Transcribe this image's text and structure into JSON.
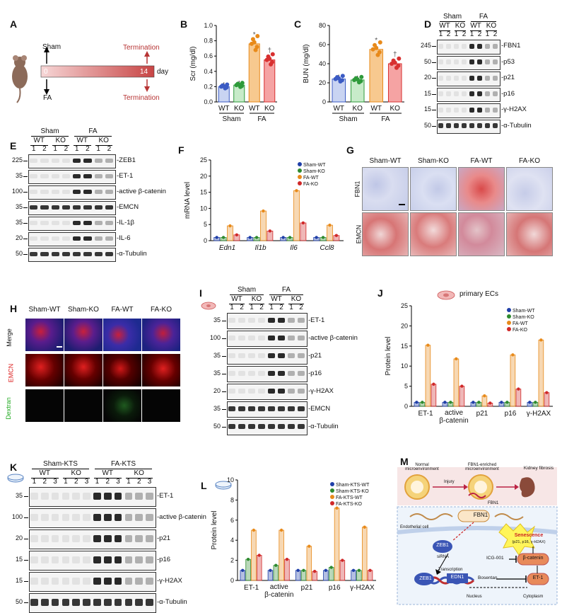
{
  "panels": {
    "A": {
      "letter": "A",
      "sham": "Sham",
      "fa": "FA",
      "day0": "0",
      "day14": "14",
      "day_unit": "day",
      "termination_top": "Termination",
      "termination_bottom": "Termination"
    },
    "B": {
      "letter": "B"
    },
    "C": {
      "letter": "C"
    },
    "D": {
      "letter": "D",
      "groups": [
        "Sham",
        "FA"
      ],
      "genotypes": [
        "WT",
        "KO",
        "WT",
        "KO"
      ],
      "lanes": [
        "1",
        "2",
        "1",
        "2",
        "1",
        "2",
        "1",
        "2"
      ],
      "bands": [
        {
          "mw": "245",
          "name": "FBN1"
        },
        {
          "mw": "50",
          "name": "p53"
        },
        {
          "mw": "20",
          "name": "p21"
        },
        {
          "mw": "15",
          "name": "p16"
        },
        {
          "mw": "15",
          "name": "γ-H2AX"
        },
        {
          "mw": "50",
          "name": "α-Tubulin"
        }
      ]
    },
    "E": {
      "letter": "E",
      "groups": [
        "Sham",
        "FA"
      ],
      "genotypes": [
        "WT",
        "KO",
        "WT",
        "KO"
      ],
      "lanes": [
        "1",
        "2",
        "1",
        "2",
        "1",
        "2",
        "1",
        "2"
      ],
      "bands": [
        {
          "mw": "225",
          "name": "ZEB1"
        },
        {
          "mw": "35",
          "name": "ET-1"
        },
        {
          "mw": "100",
          "name": "active β-catenin"
        },
        {
          "mw": "35",
          "name": "EMCN"
        },
        {
          "mw": "35",
          "name": "IL-1β"
        },
        {
          "mw": "20",
          "name": "IL-6"
        },
        {
          "mw": "50",
          "name": "α-Tubulin"
        }
      ]
    },
    "F": {
      "letter": "F"
    },
    "G": {
      "letter": "G",
      "columns": [
        "Sham-WT",
        "Sham-KO",
        "FA-WT",
        "FA-KO"
      ],
      "rows": [
        "FBN1",
        "EMCN"
      ]
    },
    "H": {
      "letter": "H",
      "columns": [
        "Sham-WT",
        "Sham-KO",
        "FA-WT",
        "FA-KO"
      ],
      "rows": [
        "Merge",
        "EMCN",
        "Dextran"
      ]
    },
    "I": {
      "letter": "I",
      "groups": [
        "Sham",
        "FA"
      ],
      "genotypes": [
        "WT",
        "KO",
        "WT",
        "KO"
      ],
      "lanes": [
        "1",
        "2",
        "1",
        "2",
        "1",
        "2",
        "1",
        "2"
      ],
      "bands": [
        {
          "mw": "35",
          "name": "ET-1"
        },
        {
          "mw": "100",
          "name": "active β-catenin"
        },
        {
          "mw": "35",
          "name": "p21"
        },
        {
          "mw": "35",
          "name": "p16"
        },
        {
          "mw": "20",
          "name": "γ-H2AX"
        },
        {
          "mw": "35",
          "name": "EMCN"
        },
        {
          "mw": "50",
          "name": "α-Tubulin"
        }
      ]
    },
    "J": {
      "letter": "J",
      "header": "primary ECs"
    },
    "K": {
      "letter": "K",
      "groups": [
        "Sham-KTS",
        "FA-KTS"
      ],
      "genotypes": [
        "WT",
        "KO",
        "WT",
        "KO"
      ],
      "lanes": [
        "1",
        "2",
        "3",
        "1",
        "2",
        "3",
        "1",
        "2",
        "3",
        "1",
        "2",
        "3"
      ],
      "bands": [
        {
          "mw": "35",
          "name": "ET-1"
        },
        {
          "mw": "100",
          "name": "active β-catenin"
        },
        {
          "mw": "20",
          "name": "p21"
        },
        {
          "mw": "15",
          "name": "p16"
        },
        {
          "mw": "15",
          "name": "γ-H2AX"
        },
        {
          "mw": "50",
          "name": "α-Tubulin"
        }
      ]
    },
    "L": {
      "letter": "L"
    },
    "M": {
      "letter": "M",
      "normal": "Normal microenvironment",
      "fbn1_env": "FBN1-enriched microenvironment",
      "fibrosis": "Kidney fibrosis",
      "injury": "Injury",
      "fbn1_small": "FBN1",
      "fbn1": "FBN1",
      "endothelial": "Endothelial cell",
      "zeb1": "ZEB1",
      "sirna": "siRNA",
      "transcription": "Transcription",
      "zeb1_dna": "ZEB1",
      "edn1": "EDN1",
      "nucleus": "Nucleus",
      "cytoplasm": "Cytoplasm",
      "icg": "ICG-001",
      "bosentan": "Bosentan",
      "bcat": "β-catenin",
      "et1": "ET-1",
      "senescence": "Senescence",
      "senescence_sub": "(p21, p16, γ-H2AX)"
    }
  },
  "chart_data": [
    {
      "panel": "B",
      "type": "bar",
      "ylabel": "Scr (mg/dl)",
      "ylim": [
        0.0,
        1.0
      ],
      "yticks": [
        "0.0",
        "0.2",
        "0.4",
        "0.6",
        "0.8",
        "1.0"
      ],
      "categories": [
        "WT",
        "KO",
        "WT",
        "KO"
      ],
      "groups": [
        "Sham",
        "FA"
      ],
      "values": [
        0.2,
        0.22,
        0.76,
        0.55
      ],
      "colors": [
        "#3b5bc4",
        "#2e9a3a",
        "#e88a1a",
        "#d83030"
      ],
      "fills": [
        "#c9d4f2",
        "#c7ebc9",
        "#f7c98f",
        "#f5a3a3"
      ],
      "marks": [
        "",
        "",
        "*",
        "†"
      ]
    },
    {
      "panel": "C",
      "type": "bar",
      "ylabel": "BUN (mg/dl)",
      "ylim": [
        0,
        80
      ],
      "yticks": [
        "0",
        "20",
        "40",
        "60",
        "80"
      ],
      "categories": [
        "WT",
        "KO",
        "WT",
        "KO"
      ],
      "groups": [
        "Sham",
        "FA"
      ],
      "values": [
        24,
        23,
        55,
        40
      ],
      "colors": [
        "#3b5bc4",
        "#2e9a3a",
        "#e88a1a",
        "#d83030"
      ],
      "fills": [
        "#c9d4f2",
        "#c7ebc9",
        "#f7c98f",
        "#f5a3a3"
      ],
      "marks": [
        "",
        "",
        "*",
        "†"
      ]
    },
    {
      "panel": "F",
      "type": "bar",
      "ylabel": "mRNA level",
      "ylim": [
        0,
        25
      ],
      "yticks": [
        "0",
        "5",
        "10",
        "15",
        "20",
        "25"
      ],
      "categories": [
        "Edn1",
        "Il1b",
        "Il6",
        "Ccl8"
      ],
      "series": [
        {
          "name": "Sham-WT",
          "color": "#1f3fa8",
          "values": [
            1,
            1,
            1,
            1
          ]
        },
        {
          "name": "Sham-KO",
          "color": "#2e8a2e",
          "values": [
            1,
            1,
            1,
            1
          ]
        },
        {
          "name": "FA-WT",
          "color": "#e88a1a",
          "values": [
            4.6,
            9.2,
            15.5,
            4.8
          ]
        },
        {
          "name": "FA-KO",
          "color": "#d02828",
          "values": [
            1.8,
            3.0,
            5.5,
            1.6
          ]
        }
      ]
    },
    {
      "panel": "J",
      "type": "bar",
      "ylabel": "Protein level",
      "ylim": [
        0,
        25
      ],
      "yticks": [
        "0",
        "5",
        "10",
        "15",
        "20",
        "25"
      ],
      "categories": [
        "ET-1",
        "active β-catenin",
        "p21",
        "p16",
        "γ-H2AX"
      ],
      "series": [
        {
          "name": "Sham-WT",
          "color": "#1f3fa8",
          "values": [
            1,
            1,
            1,
            1,
            1
          ]
        },
        {
          "name": "Sham-KO",
          "color": "#2e8a2e",
          "values": [
            1,
            1,
            1,
            1,
            1
          ]
        },
        {
          "name": "FA-WT",
          "color": "#e88a1a",
          "values": [
            15.2,
            11.8,
            2.6,
            12.8,
            16.5
          ]
        },
        {
          "name": "FA-KO",
          "color": "#d02828",
          "values": [
            5.5,
            5.0,
            0.8,
            4.3,
            3.4
          ]
        }
      ]
    },
    {
      "panel": "L",
      "type": "bar",
      "ylabel": "Protein level",
      "ylim": [
        0,
        10
      ],
      "yticks": [
        "0",
        "2",
        "4",
        "6",
        "8",
        "10"
      ],
      "categories": [
        "ET-1",
        "active β-catenin",
        "p21",
        "p16",
        "γ-H2AX"
      ],
      "series": [
        {
          "name": "Sham-KTS-WT",
          "color": "#1f3fa8",
          "values": [
            1,
            1,
            1,
            1,
            1
          ]
        },
        {
          "name": "Sham-KTS-KO",
          "color": "#2e8a2e",
          "values": [
            2.1,
            1.5,
            1.0,
            1.3,
            1.0
          ]
        },
        {
          "name": "FA-KTS-WT",
          "color": "#e88a1a",
          "values": [
            5.0,
            5.0,
            3.4,
            7.2,
            5.3
          ]
        },
        {
          "name": "FA-KTS-KO",
          "color": "#d02828",
          "values": [
            2.5,
            2.1,
            0.9,
            2.0,
            1.0
          ]
        }
      ]
    }
  ]
}
